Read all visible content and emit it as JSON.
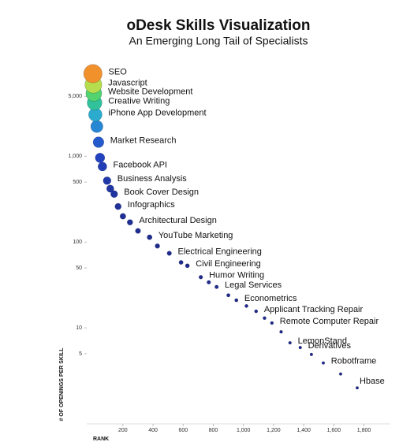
{
  "chart_data": {
    "type": "bubble",
    "title": "oDesk Skills Visualization",
    "subtitle": "An Emerging Long Tail of Specialists",
    "xlabel": "RANK",
    "ylabel": "# OF OPENINGS PER SKILL",
    "log_y": true,
    "grid": false,
    "colorscale": [
      "#1f2a8a",
      "#2346c8",
      "#2aa6d8",
      "#35d07a",
      "#f2e338",
      "#f0321e"
    ],
    "xlim": [
      -40,
      1975
    ],
    "ylim": [
      0.76,
      11000
    ],
    "xticks": [
      200,
      400,
      600,
      800,
      {
        "value": 1000,
        "label": "1,000"
      },
      {
        "value": 1200,
        "label": "1,200"
      },
      {
        "value": 1400,
        "label": "1,400"
      },
      {
        "value": 1600,
        "label": "1,600"
      },
      {
        "value": 1800,
        "label": "1,800"
      }
    ],
    "yticks": [
      5,
      10,
      50,
      100,
      500,
      {
        "value": 1000,
        "label": "1,000"
      },
      {
        "value": 5000,
        "label": "5,000"
      }
    ],
    "x": [
      1,
      4,
      7,
      12,
      17,
      27,
      38,
      48,
      64,
      95,
      116,
      142,
      168,
      200,
      247,
      300,
      377,
      429,
      508,
      586,
      628,
      717,
      770,
      822,
      900,
      953,
      1020,
      1084,
      1140,
      1189,
      1250,
      1309,
      1377,
      1451,
      1530,
      1645,
      1755
    ],
    "values": [
      9200,
      6840,
      5420,
      4200,
      3060,
      2230,
      1460,
      960,
      760,
      520,
      420,
      363,
      260,
      200,
      170,
      135,
      114,
      90,
      74,
      58,
      53,
      39,
      34,
      30,
      24,
      21,
      18,
      15.6,
      13,
      11.4,
      9,
      6.7,
      5.9,
      4.9,
      3.9,
      2.9,
      2.0
    ],
    "labels": [
      "SEO",
      "Javascript",
      "Website Development",
      "Creative Writing",
      "iPhone App Development",
      null,
      "Market Research",
      null,
      "Facebook API",
      "Business Analysis",
      null,
      "Book Cover Design",
      "Infographics",
      null,
      "Architectural Design",
      null,
      "YouTube Marketing",
      null,
      "Electrical Engineering",
      null,
      "Civil Engineering",
      "Humor Writing",
      null,
      "Legal Services",
      null,
      "Econometrics",
      null,
      "Applicant Tracking Repair",
      null,
      "Remote Computer Repair",
      null,
      "LemonStand",
      "Derivatives",
      null,
      "Robotframe",
      null,
      "Hbase"
    ]
  }
}
